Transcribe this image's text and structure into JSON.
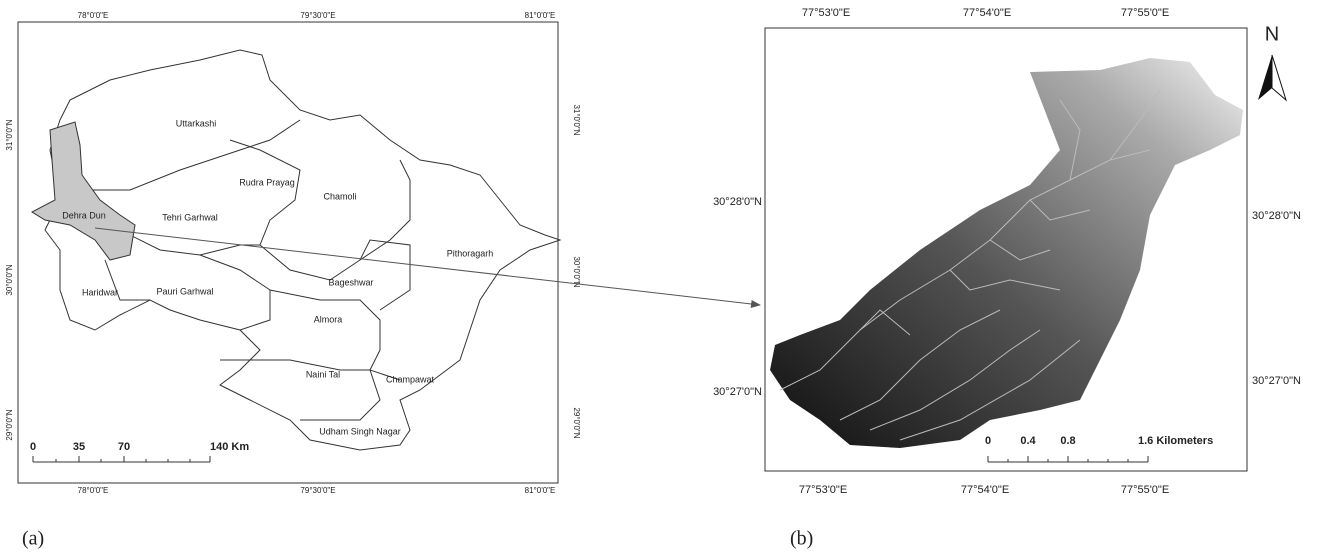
{
  "panel_a": {
    "label": "(a)",
    "top_ticks": [
      "78°0'0\"E",
      "79°30'0\"E",
      "81°0'0\"E"
    ],
    "bottom_ticks": [
      "78°0'0\"E",
      "79°30'0\"E",
      "81°0'0\"E"
    ],
    "left_ticks": [
      "31°0'0\"N",
      "30°0'0\"N",
      "29°0'0\"N"
    ],
    "right_ticks": [
      "31°0'0\"N",
      "30°0'0\"N",
      "29°0'0\"N"
    ],
    "districts": [
      "Uttarkashi",
      "Rudra Prayag",
      "Chamoli",
      "Dehra Dun",
      "Tehri Garhwal",
      "Pithoragarh",
      "Bageshwar",
      "Haridwar",
      "Pauri Garhwal",
      "Almora",
      "Naini Tal",
      "Champawat",
      "Udham Singh Nagar"
    ],
    "scale_bar": [
      "0",
      "35",
      "70",
      "140 Km"
    ]
  },
  "panel_b": {
    "label": "(b)",
    "top_ticks": [
      "77°53'0\"E",
      "77°54'0\"E",
      "77°55'0\"E"
    ],
    "bottom_ticks": [
      "77°53'0\"E",
      "77°54'0\"E",
      "77°55'0\"E"
    ],
    "left_ticks": [
      "30°28'0\"N",
      "30°27'0\"N"
    ],
    "right_ticks": [
      "30°28'0\"N",
      "30°27'0\"N"
    ],
    "north": "N",
    "scale_bar": [
      "0",
      "0.4",
      "0.8",
      "1.6 Kilometers"
    ]
  }
}
